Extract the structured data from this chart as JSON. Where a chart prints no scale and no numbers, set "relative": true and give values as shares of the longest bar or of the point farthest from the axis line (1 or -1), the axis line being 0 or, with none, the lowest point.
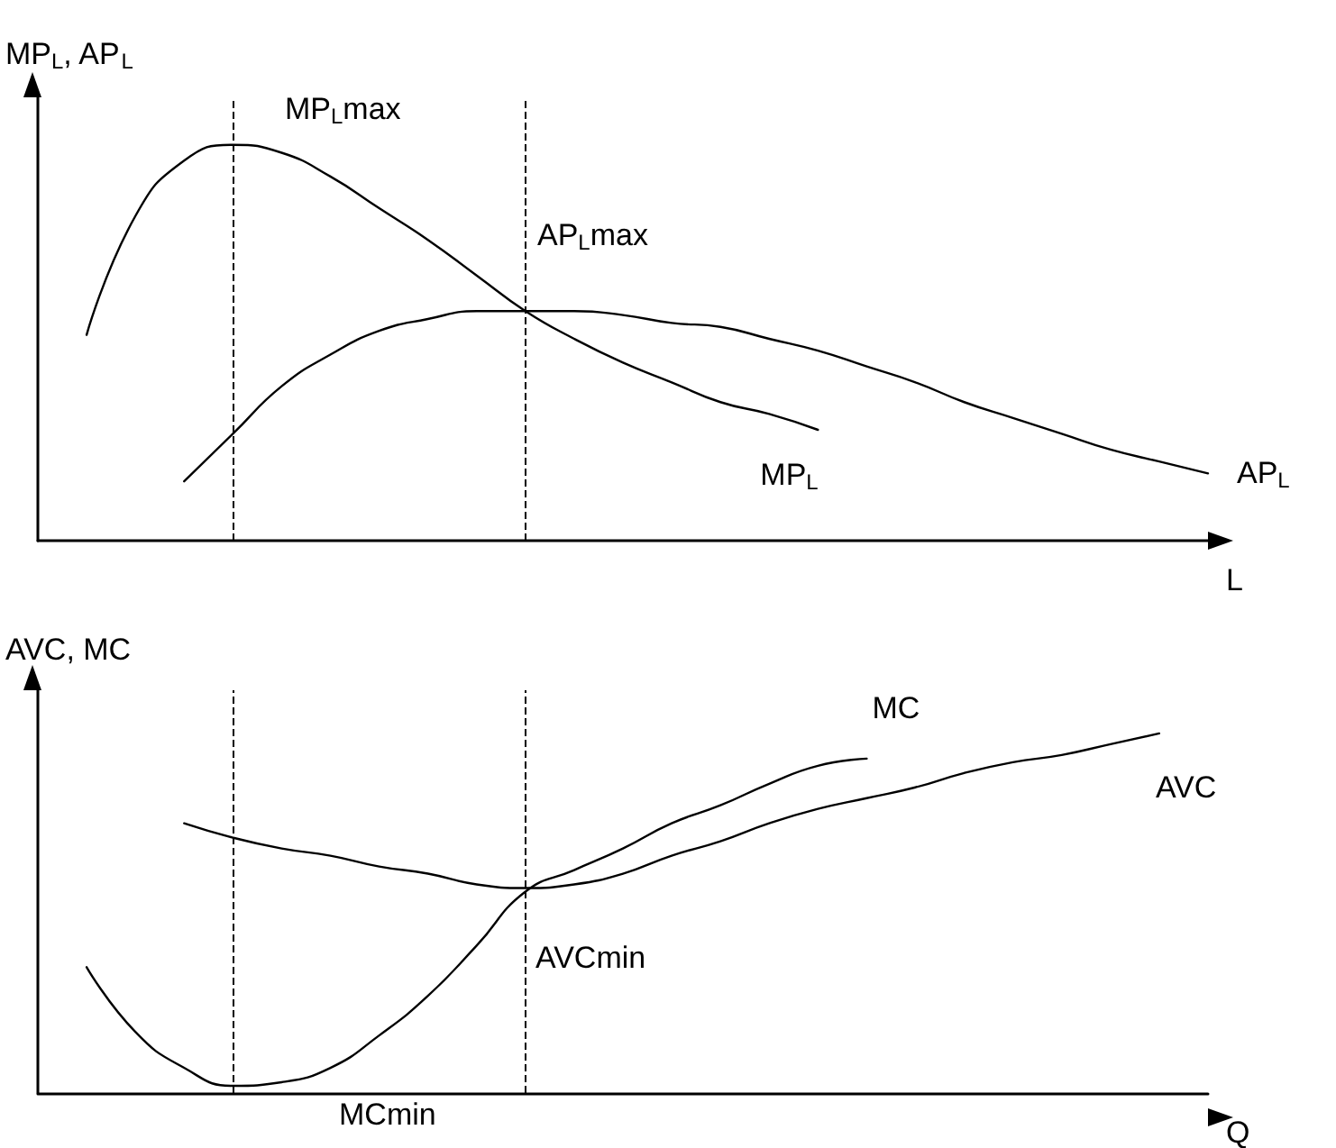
{
  "chart_data": [
    {
      "type": "line",
      "relative": true,
      "ylabel": "MP$_{L}$, AP$_{L}$",
      "xlabel": "L",
      "legend": false,
      "grid": false,
      "marker": "none",
      "line_style": "solid",
      "categories": [
        null,
        null,
        null,
        null,
        null,
        null,
        null,
        null,
        null,
        null,
        null,
        null,
        null,
        null,
        null,
        null,
        null,
        null,
        null,
        null,
        null,
        null,
        null,
        null,
        null
      ],
      "series": [
        {
          "name": "MP$_{L}$",
          "color": "#000000",
          "values": [
            null,
            0.52,
            0.82,
            0.96,
            1.0,
            0.98,
            0.92,
            0.84,
            0.76,
            0.67,
            0.58,
            0.51,
            0.45,
            0.4,
            0.35,
            0.32,
            0.28,
            null,
            null,
            null,
            null,
            null,
            null,
            null,
            null
          ]
        },
        {
          "name": "AP$_{L}$",
          "color": "#000000",
          "values": [
            null,
            null,
            null,
            0.15,
            0.27,
            0.39,
            0.47,
            0.53,
            0.56,
            0.58,
            0.58,
            0.58,
            0.57,
            0.55,
            0.54,
            0.51,
            0.48,
            0.44,
            0.4,
            0.35,
            0.31,
            0.27,
            0.23,
            0.2,
            0.17
          ]
        }
      ],
      "annotations": [
        "MP$_{L}$max",
        "AP$_{L}$max"
      ]
    },
    {
      "type": "line",
      "relative": true,
      "ylabel": "AVC, MC",
      "xlabel": "Q",
      "legend": false,
      "grid": false,
      "marker": "none",
      "line_style": "solid",
      "categories": [
        null,
        null,
        null,
        null,
        null,
        null,
        null,
        null,
        null,
        null,
        null,
        null,
        null,
        null,
        null,
        null,
        null,
        null,
        null,
        null,
        null,
        null,
        null,
        null,
        null
      ],
      "series": [
        {
          "name": "MC",
          "color": "#000000",
          "values": [
            null,
            0.35,
            0.17,
            0.07,
            0.02,
            0.03,
            0.07,
            0.16,
            0.27,
            0.41,
            0.56,
            0.62,
            0.68,
            0.75,
            0.8,
            0.86,
            0.91,
            0.93,
            null,
            null,
            null,
            null,
            null,
            null,
            null
          ]
        },
        {
          "name": "AVC",
          "color": "#000000",
          "values": [
            null,
            null,
            null,
            0.75,
            0.71,
            0.68,
            0.66,
            0.63,
            0.61,
            0.58,
            0.57,
            0.58,
            0.61,
            0.66,
            0.7,
            0.75,
            0.79,
            0.82,
            0.85,
            0.89,
            0.92,
            0.94,
            0.97,
            1.0,
            null
          ]
        }
      ],
      "annotations": [
        "AVCmin",
        "MCmin"
      ]
    }
  ]
}
